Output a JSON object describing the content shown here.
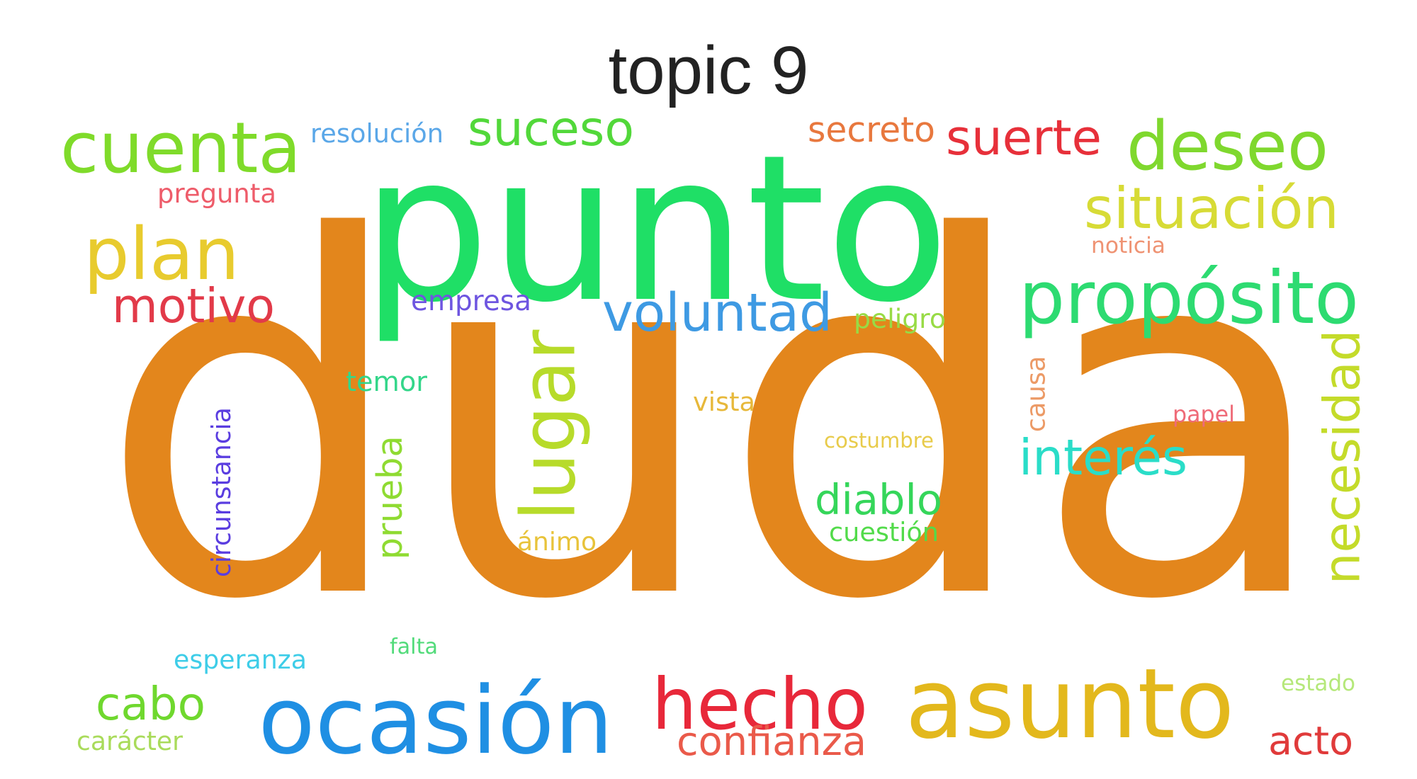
{
  "title": "topic 9",
  "words": [
    {
      "text": "duda",
      "color": "#E3861C",
      "vertical": false
    },
    {
      "text": "punto",
      "color": "#1FDF66",
      "vertical": false
    },
    {
      "text": "cuenta",
      "color": "#7FDB2A",
      "vertical": false
    },
    {
      "text": "resolución",
      "color": "#5AA7E8",
      "vertical": false
    },
    {
      "text": "suceso",
      "color": "#52D83A",
      "vertical": false
    },
    {
      "text": "secreto",
      "color": "#E8783E",
      "vertical": false
    },
    {
      "text": "suerte",
      "color": "#E7303A",
      "vertical": false
    },
    {
      "text": "deseo",
      "color": "#7FD82E",
      "vertical": false
    },
    {
      "text": "pregunta",
      "color": "#EE5C6A",
      "vertical": false
    },
    {
      "text": "situación",
      "color": "#D7DB36",
      "vertical": false
    },
    {
      "text": "plan",
      "color": "#E8CB2E",
      "vertical": false
    },
    {
      "text": "noticia",
      "color": "#EF9373",
      "vertical": false
    },
    {
      "text": "propósito",
      "color": "#2DDB71",
      "vertical": false
    },
    {
      "text": "motivo",
      "color": "#E23A49",
      "vertical": false
    },
    {
      "text": "empresa",
      "color": "#6E55E0",
      "vertical": false
    },
    {
      "text": "voluntad",
      "color": "#3E9AE3",
      "vertical": false
    },
    {
      "text": "peligro",
      "color": "#98DB45",
      "vertical": false
    },
    {
      "text": "lugar",
      "color": "#B7DB2A",
      "vertical": true
    },
    {
      "text": "necesidad",
      "color": "#C4DB2A",
      "vertical": true
    },
    {
      "text": "temor",
      "color": "#34D68A",
      "vertical": false
    },
    {
      "text": "vista",
      "color": "#E7B83A",
      "vertical": false
    },
    {
      "text": "causa",
      "color": "#EC9A66",
      "vertical": true
    },
    {
      "text": "papel",
      "color": "#EF6B78",
      "vertical": false
    },
    {
      "text": "circunstancia",
      "color": "#5A3DE0",
      "vertical": true
    },
    {
      "text": "prueba",
      "color": "#8FDB32",
      "vertical": true
    },
    {
      "text": "costumbre",
      "color": "#E8CB4A",
      "vertical": false
    },
    {
      "text": "interés",
      "color": "#2ADDC8",
      "vertical": false
    },
    {
      "text": "diablo",
      "color": "#35D65A",
      "vertical": false
    },
    {
      "text": "ánimo",
      "color": "#E8C33A",
      "vertical": false
    },
    {
      "text": "cuestión",
      "color": "#52DB4A",
      "vertical": false
    },
    {
      "text": "falta",
      "color": "#52DB7A",
      "vertical": false
    },
    {
      "text": "esperanza",
      "color": "#3ECDE8",
      "vertical": false
    },
    {
      "text": "hecho",
      "color": "#E8283A",
      "vertical": false
    },
    {
      "text": "asunto",
      "color": "#E3B81C",
      "vertical": false
    },
    {
      "text": "estado",
      "color": "#B5E87A",
      "vertical": false
    },
    {
      "text": "cabo",
      "color": "#6FD82E",
      "vertical": false
    },
    {
      "text": "ocasión",
      "color": "#1F8FE3",
      "vertical": false
    },
    {
      "text": "confianza",
      "color": "#EA5A4A",
      "vertical": false
    },
    {
      "text": "acto",
      "color": "#E03A3A",
      "vertical": false
    },
    {
      "text": "carácter",
      "color": "#A9DB5A",
      "vertical": false
    }
  ]
}
